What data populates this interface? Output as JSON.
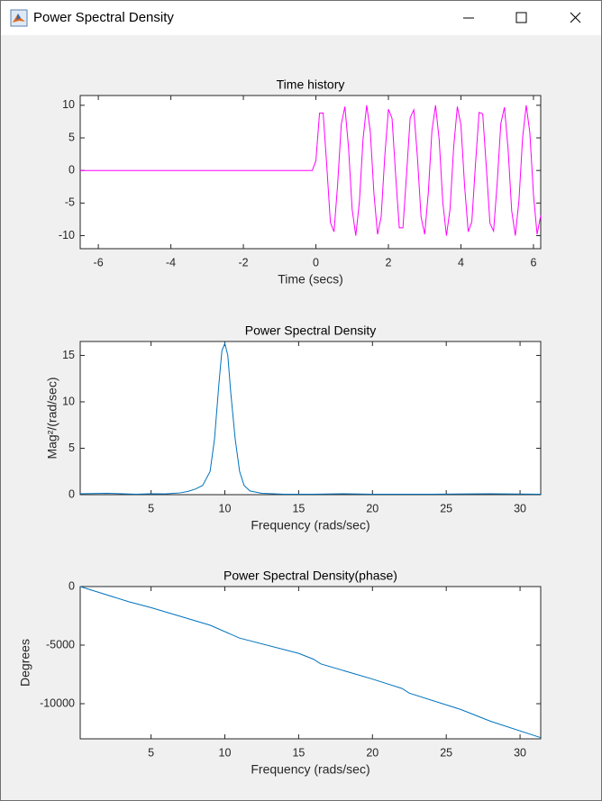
{
  "window": {
    "title": "Power Spectral Density"
  },
  "chart_data": [
    {
      "type": "line",
      "title": "Time history",
      "x_label": "Time (secs)",
      "color": "#ff00ff",
      "x": [
        -6.5,
        -0.1,
        0.0,
        0.1,
        0.2,
        0.3,
        0.4,
        0.5,
        0.6,
        0.7,
        0.8,
        0.9,
        1.0,
        1.1,
        1.2,
        1.3,
        1.4,
        1.5,
        1.6,
        1.7,
        1.8,
        1.9,
        2.0,
        2.1,
        2.2,
        2.3,
        2.4,
        2.5,
        2.6,
        2.7,
        2.8,
        2.9,
        3.0,
        3.1,
        3.2,
        3.3,
        3.4,
        3.5,
        3.6,
        3.7,
        3.8,
        3.9,
        4.0,
        4.1,
        4.2,
        4.3,
        4.4,
        4.5,
        4.6,
        4.7,
        4.8,
        4.9,
        5.0,
        5.1,
        5.2,
        5.3,
        5.4,
        5.5,
        5.6,
        5.7,
        5.8,
        5.9,
        6.0,
        6.1,
        6.2
      ],
      "values": [
        0,
        0,
        1.5,
        8.8,
        8.8,
        0.7,
        -8.0,
        -9.4,
        -2.1,
        7.1,
        9.8,
        3.5,
        -6.0,
        -10.0,
        -4.8,
        4.8,
        10.0,
        6.0,
        -3.5,
        -9.8,
        -7.1,
        2.2,
        9.4,
        8.0,
        -0.8,
        -8.8,
        -8.8,
        -0.6,
        8.1,
        9.3,
        2.0,
        -7.1,
        -9.8,
        -3.4,
        6.1,
        10.0,
        4.7,
        -4.9,
        -10.0,
        -5.9,
        3.6,
        9.8,
        7.0,
        -2.3,
        -9.4,
        -7.9,
        0.9,
        8.9,
        8.7,
        0.5,
        -8.1,
        -9.3,
        -1.9,
        7.2,
        9.7,
        3.3,
        -6.2,
        -10.0,
        -4.6,
        5.0,
        10.0,
        5.8,
        -3.7,
        -9.8,
        -6.9
      ],
      "xlim": [
        -6.5,
        6.2
      ],
      "ylim": [
        -12,
        11.5
      ],
      "xticks": [
        -6,
        -4,
        -2,
        0,
        2,
        4,
        6
      ],
      "yticks": [
        -10,
        -5,
        0,
        5,
        10
      ]
    },
    {
      "type": "line",
      "title": "Power Spectral Density",
      "x_label": "Frequency (rads/sec)",
      "y_label": "Mag²/(rad/sec)",
      "color": "#0072bd",
      "x": [
        0.2,
        2,
        4,
        5,
        6,
        7,
        7.5,
        8,
        8.5,
        9,
        9.3,
        9.6,
        9.8,
        10,
        10.2,
        10.4,
        10.7,
        11,
        11.3,
        11.7,
        12.5,
        14,
        16,
        18,
        20,
        24,
        28,
        31.4
      ],
      "values": [
        0.1,
        0.15,
        0.05,
        0.1,
        0.08,
        0.2,
        0.35,
        0.6,
        1.0,
        2.5,
        6,
        12,
        15.5,
        16.3,
        15,
        11,
        6,
        2.5,
        1,
        0.4,
        0.15,
        0.05,
        0.05,
        0.1,
        0.05,
        0.05,
        0.1,
        0.05
      ],
      "xlim": [
        0.2,
        31.4
      ],
      "ylim": [
        0,
        16.5
      ],
      "xticks": [
        5,
        10,
        15,
        20,
        25,
        30
      ],
      "yticks": [
        0,
        5,
        10,
        15
      ]
    },
    {
      "type": "line",
      "title": "Power Spectral Density(phase)",
      "x_label": "Frequency (rads/sec)",
      "y_label": "Degrees",
      "color": "#0072bd",
      "x": [
        0.2,
        3.5,
        5,
        9,
        11,
        15,
        16,
        16.5,
        20,
        22,
        22.5,
        26,
        28,
        31.4
      ],
      "values": [
        0,
        -1300,
        -1800,
        -3300,
        -4400,
        -5700,
        -6200,
        -6600,
        -7900,
        -8700,
        -9100,
        -10500,
        -11500,
        -12900
      ],
      "xlim": [
        0.2,
        31.4
      ],
      "ylim": [
        -13000,
        0
      ],
      "xticks": [
        5,
        10,
        15,
        20,
        25,
        30
      ],
      "yticks": [
        -10000,
        -5000,
        0
      ]
    }
  ]
}
